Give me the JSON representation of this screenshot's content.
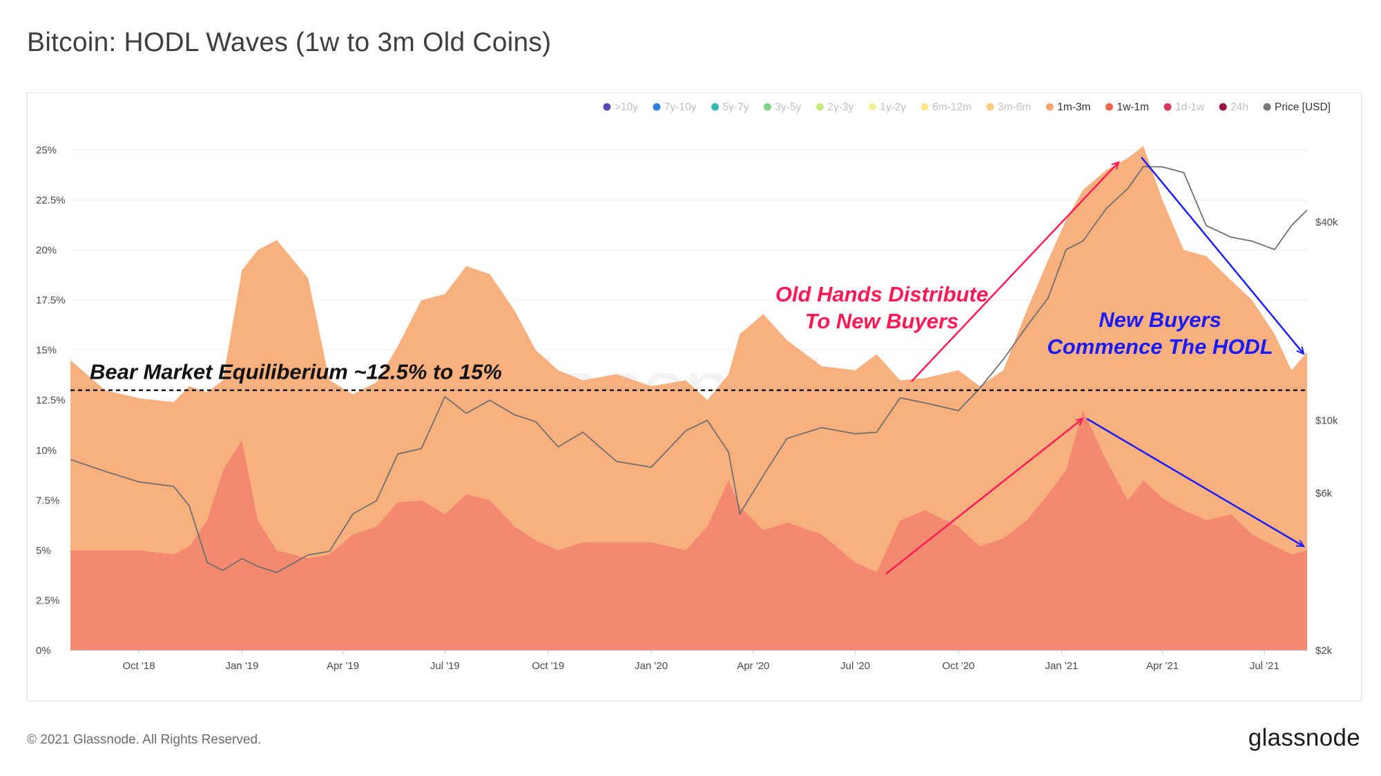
{
  "page": {
    "title": "Bitcoin: HODL Waves (1w to 3m Old Coins)",
    "footer_copyright": "© 2021 Glassnode. All Rights Reserved.",
    "footer_brand": "glassnode",
    "watermark": "glassnode"
  },
  "colors": {
    "band_1m_3m": "#f8b07e",
    "band_1w_1m": "#f38a6f",
    "price_line": "#6f6f6f",
    "annotation_red": "#ff1a55",
    "annotation_blue": "#1a1aff",
    "equilibrium_line": "#111111"
  },
  "legend": [
    {
      "label": ">10y",
      "color": "#5b4ab3",
      "active": false
    },
    {
      "label": "7y-10y",
      "color": "#2f7ed8",
      "active": false
    },
    {
      "label": "5y-7y",
      "color": "#35b9b1",
      "active": false
    },
    {
      "label": "3y-5y",
      "color": "#7fd48a",
      "active": false
    },
    {
      "label": "2y-3y",
      "color": "#c6ec7c",
      "active": false
    },
    {
      "label": "1y-2y",
      "color": "#f4f497",
      "active": false
    },
    {
      "label": "6m-12m",
      "color": "#fde58c",
      "active": false
    },
    {
      "label": "3m-6m",
      "color": "#fcc97e",
      "active": false
    },
    {
      "label": "1m-3m",
      "color": "#f8a26e",
      "active": true
    },
    {
      "label": "1w-1m",
      "color": "#f0684c",
      "active": true
    },
    {
      "label": "1d-1w",
      "color": "#d93a58",
      "active": false
    },
    {
      "label": "24h",
      "color": "#9a1249",
      "active": false
    },
    {
      "label": "Price [USD]",
      "color": "#777777",
      "active": true
    }
  ],
  "annotations": {
    "equilibrium": "Bear Market Equiliberium ~12.5% to 15%",
    "red_line1": "Old Hands Distribute",
    "red_line2": "To New Buyers",
    "blue_line1": "New Buyers",
    "blue_line2": "Commence The HODL"
  },
  "chart_data": {
    "type": "area",
    "y_axis_left": {
      "ticks": [
        "0%",
        "2.5%",
        "5%",
        "7.5%",
        "10%",
        "12.5%",
        "15%",
        "17.5%",
        "20%",
        "22.5%",
        "25%"
      ],
      "range": [
        0,
        25.6
      ],
      "unit": "%"
    },
    "y_axis_right": {
      "ticks": [
        "$2k",
        "$6k",
        "$10k",
        "$40k"
      ],
      "scale": "log",
      "range": [
        2000,
        72000
      ]
    },
    "x_axis": {
      "ticks": [
        "Oct '18",
        "Jan '19",
        "Apr '19",
        "Jul '19",
        "Oct '19",
        "Jan '20",
        "Apr '20",
        "Jul '20",
        "Oct '20",
        "Jan '21",
        "Apr '21",
        "Jul '21"
      ],
      "range": [
        "2018-08-01",
        "2021-08-08"
      ]
    },
    "x": [
      "2018-08-01",
      "2018-09-01",
      "2018-10-01",
      "2018-11-01",
      "2018-11-15",
      "2018-12-01",
      "2018-12-15",
      "2019-01-01",
      "2019-01-15",
      "2019-02-01",
      "2019-03-01",
      "2019-03-20",
      "2019-04-10",
      "2019-05-01",
      "2019-05-20",
      "2019-06-10",
      "2019-07-01",
      "2019-07-20",
      "2019-08-10",
      "2019-09-01",
      "2019-09-20",
      "2019-10-10",
      "2019-11-01",
      "2019-12-01",
      "2020-01-01",
      "2020-02-01",
      "2020-02-20",
      "2020-03-10",
      "2020-03-20",
      "2020-04-10",
      "2020-05-01",
      "2020-06-01",
      "2020-07-01",
      "2020-07-20",
      "2020-08-10",
      "2020-09-01",
      "2020-10-01",
      "2020-10-20",
      "2020-11-10",
      "2020-12-01",
      "2020-12-20",
      "2021-01-05",
      "2021-01-20",
      "2021-02-10",
      "2021-03-01",
      "2021-03-15",
      "2021-04-01",
      "2021-04-20",
      "2021-05-10",
      "2021-06-01",
      "2021-06-20",
      "2021-07-10",
      "2021-07-25",
      "2021-08-08"
    ],
    "series": [
      {
        "name": "1m-3m",
        "values": [
          14.5,
          13.0,
          12.6,
          12.4,
          13.2,
          12.9,
          13.5,
          19.0,
          20.0,
          20.5,
          18.6,
          13.5,
          12.8,
          13.4,
          15.2,
          17.5,
          17.8,
          19.2,
          18.8,
          17.0,
          15.0,
          14.0,
          13.5,
          13.8,
          13.2,
          13.5,
          12.5,
          13.8,
          15.8,
          16.8,
          15.5,
          14.2,
          14.0,
          14.8,
          13.5,
          13.6,
          14.0,
          13.2,
          14.0,
          17.0,
          19.5,
          21.5,
          23.0,
          24.0,
          24.6,
          25.2,
          22.5,
          20.0,
          19.7,
          18.5,
          17.5,
          15.8,
          14.0,
          14.9
        ]
      },
      {
        "name": "1w-1m",
        "values": [
          5.0,
          5.0,
          5.0,
          4.8,
          5.2,
          6.5,
          9.0,
          10.5,
          6.5,
          5.0,
          4.6,
          4.8,
          5.8,
          6.2,
          7.4,
          7.5,
          6.8,
          7.8,
          7.5,
          6.2,
          5.5,
          5.0,
          5.4,
          5.4,
          5.4,
          5.0,
          6.2,
          8.5,
          7.2,
          6.0,
          6.4,
          5.8,
          4.4,
          3.9,
          6.5,
          7.0,
          6.2,
          5.2,
          5.6,
          6.5,
          7.8,
          9.0,
          12.0,
          9.5,
          7.5,
          8.5,
          7.6,
          7.0,
          6.5,
          6.8,
          5.8,
          5.2,
          4.8,
          5.0
        ]
      },
      {
        "name": "Price [USD]",
        "values": [
          7600,
          7000,
          6500,
          6300,
          5500,
          3700,
          3500,
          3800,
          3600,
          3450,
          3900,
          4000,
          5200,
          5700,
          7900,
          8200,
          11800,
          10500,
          11500,
          10400,
          9900,
          8300,
          9200,
          7500,
          7200,
          9300,
          10000,
          8000,
          5200,
          6800,
          8800,
          9500,
          9100,
          9200,
          11700,
          11300,
          10700,
          12500,
          15300,
          19300,
          23500,
          33000,
          35000,
          44000,
          50500,
          59000,
          58800,
          56500,
          39000,
          36000,
          35000,
          33000,
          39000,
          43500
        ]
      }
    ],
    "equilibrium_level": 13.0
  }
}
